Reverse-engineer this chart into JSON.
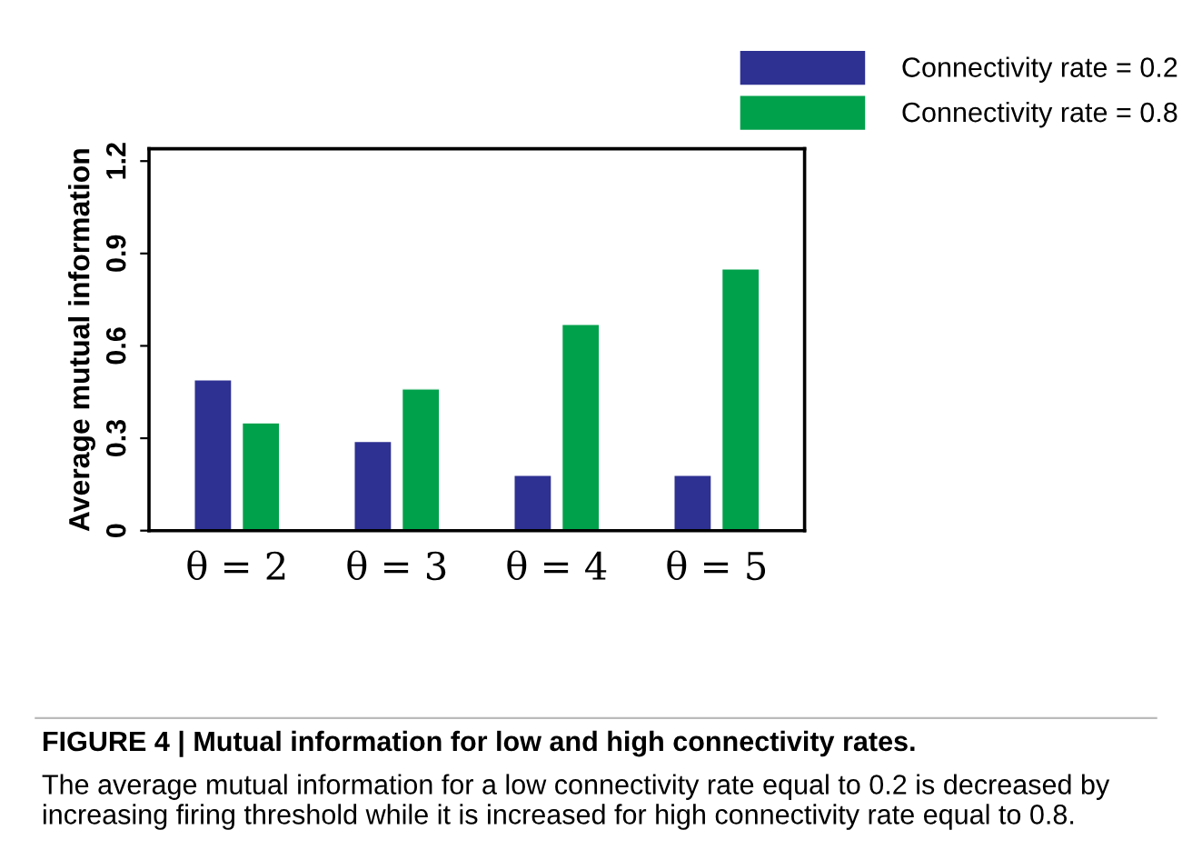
{
  "chart_data": {
    "type": "bar",
    "ylabel": "Average mutual information",
    "categories": [
      "θ = 2",
      "θ = 3",
      "θ = 4",
      "θ = 5"
    ],
    "series": [
      {
        "name": "Connectivity rate = 0.2",
        "color": "#2e3192",
        "values": [
          0.49,
          0.29,
          0.18,
          0.18
        ]
      },
      {
        "name": "Connectivity rate = 0.8",
        "color": "#00a14b",
        "values": [
          0.35,
          0.46,
          0.67,
          0.85
        ]
      }
    ],
    "ylim": [
      0,
      1.24
    ],
    "yticks": [
      0,
      0.3,
      0.6,
      0.9,
      1.2
    ],
    "grid": false,
    "legend": "top right",
    "annotations": [
      "FIGURE 4 | Mutual information for low and high connectivity rates.",
      "The average mutual information for a low connectivity rate equal to 0.2 is decreased by increasing firing threshold while it is increased for high connectivity rate equal to 0.8."
    ]
  }
}
